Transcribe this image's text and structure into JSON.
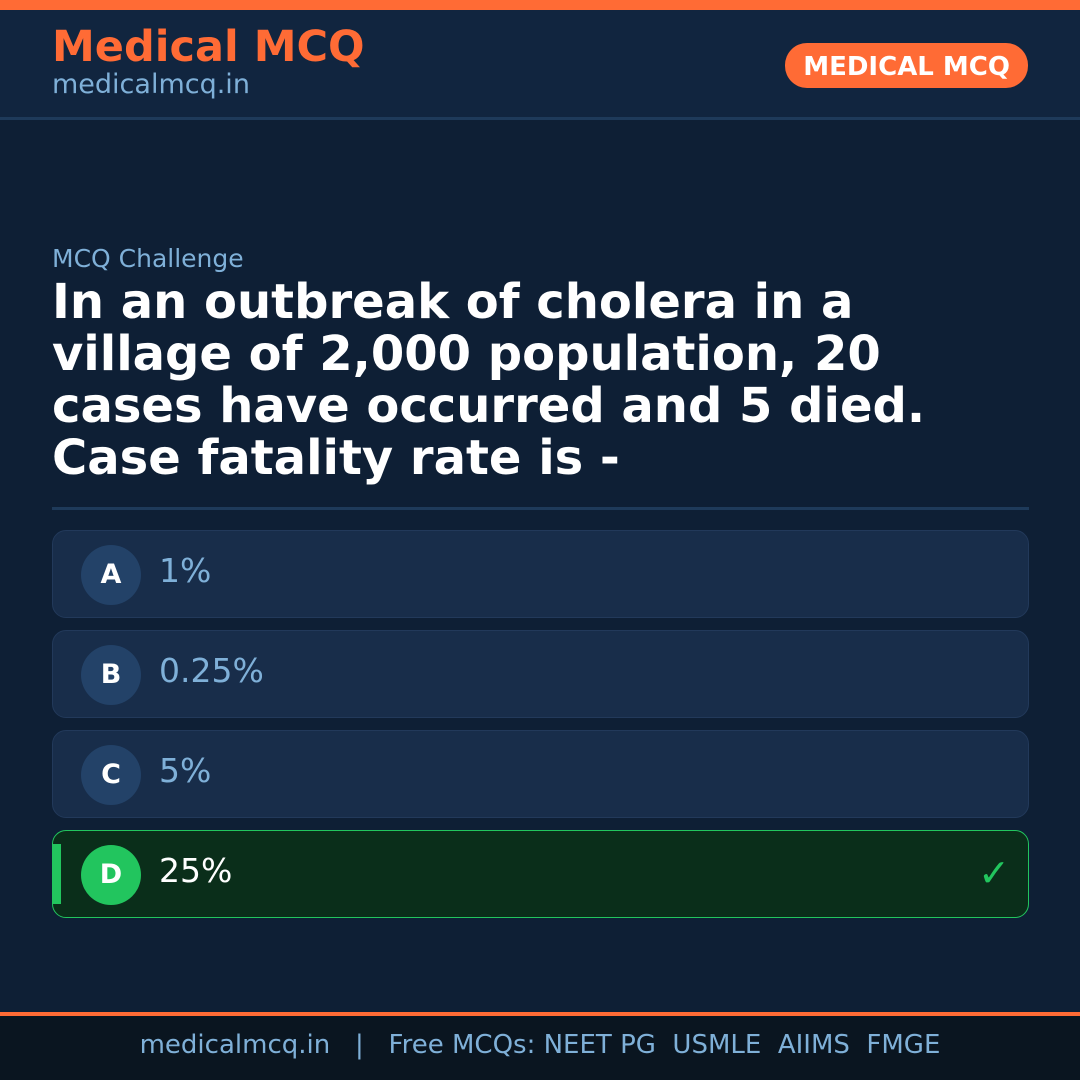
{
  "header": {
    "brand": "Medical MCQ",
    "site": "medicalmcq.in",
    "badge": "MEDICAL MCQ"
  },
  "label": "MCQ Challenge",
  "question": "In an outbreak of cholera in a village of 2,000 population, 20 cases have occurred and 5 died. Case fatality rate is -",
  "options": [
    {
      "letter": "A",
      "text": "1%"
    },
    {
      "letter": "B",
      "text": "0.25%"
    },
    {
      "letter": "C",
      "text": "5%"
    },
    {
      "letter": "D",
      "text": "25%",
      "correct": true
    }
  ],
  "check_icon": "✓",
  "footer": "medicalmcq.in   |   Free MCQs: NEET PG  USMLE  AIIMS  FMGE",
  "colors": {
    "accent": "#ff6b35",
    "correct": "#22c55e",
    "background": "#0e1f35"
  }
}
